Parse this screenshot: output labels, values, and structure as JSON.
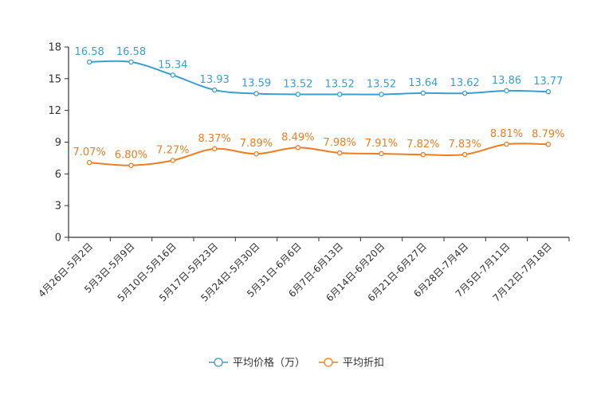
{
  "chart_data": {
    "type": "line",
    "title": "",
    "xlabel": "",
    "ylabel": "",
    "ylim": [
      0,
      18
    ],
    "yticks": [
      0,
      3,
      6,
      9,
      12,
      15,
      18
    ],
    "grid": false,
    "legend_position": "bottom-center",
    "categories": [
      "4月26日-5月2日",
      "5月3日-5月9日",
      "5月10日-5月16日",
      "5月17日-5月23日",
      "5月24日-5月30日",
      "5月31日-6月6日",
      "6月7日-6月13日",
      "6月14日-6月20日",
      "6月21日-6月27日",
      "6月28日-7月4日",
      "7月5日-7月11日",
      "7月12日-7月18日"
    ],
    "series": [
      {
        "name": "平均价格（万）",
        "color": "#3a9ed0",
        "values": [
          16.58,
          16.58,
          15.34,
          13.93,
          13.59,
          13.52,
          13.52,
          13.52,
          13.64,
          13.62,
          13.86,
          13.77
        ],
        "labels": [
          "16.58",
          "16.58",
          "15.34",
          "13.93",
          "13.59",
          "13.52",
          "13.52",
          "13.52",
          "13.64",
          "13.62",
          "13.86",
          "13.77"
        ]
      },
      {
        "name": "平均折扣",
        "color": "#f07d1e",
        "values": [
          7.07,
          6.8,
          7.27,
          8.37,
          7.89,
          8.49,
          7.98,
          7.91,
          7.82,
          7.83,
          8.81,
          8.79
        ],
        "labels": [
          "7.07%",
          "6.80%",
          "7.27%",
          "8.37%",
          "7.89%",
          "8.49%",
          "7.98%",
          "7.91%",
          "7.82%",
          "7.83%",
          "8.81%",
          "8.79%"
        ]
      }
    ]
  }
}
